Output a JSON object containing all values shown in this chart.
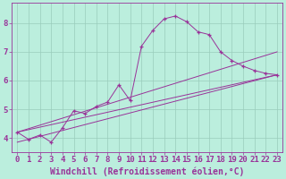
{
  "xlabel": "Windchill (Refroidissement éolien,°C)",
  "bg_color": "#bbeedd",
  "line_color": "#993399",
  "grid_color": "#99ccbb",
  "xlim": [
    -0.5,
    23.5
  ],
  "ylim": [
    3.5,
    8.7
  ],
  "xticks": [
    0,
    1,
    2,
    3,
    4,
    5,
    6,
    7,
    8,
    9,
    10,
    11,
    12,
    13,
    14,
    15,
    16,
    17,
    18,
    19,
    20,
    21,
    22,
    23
  ],
  "yticks": [
    4,
    5,
    6,
    7,
    8
  ],
  "curve_x": [
    0,
    1,
    2,
    3,
    4,
    5,
    6,
    7,
    8,
    9,
    10,
    11,
    12,
    13,
    14,
    15,
    16,
    17,
    18,
    19,
    20,
    21,
    22,
    23
  ],
  "curve_y": [
    4.2,
    3.95,
    4.1,
    3.85,
    4.35,
    4.95,
    4.85,
    5.1,
    5.25,
    5.85,
    5.3,
    7.2,
    7.75,
    8.15,
    8.25,
    8.05,
    7.7,
    7.6,
    7.0,
    6.7,
    6.5,
    6.35,
    6.25,
    6.2
  ],
  "line1_x": [
    0,
    23
  ],
  "line1_y": [
    4.2,
    6.2
  ],
  "line2_x": [
    0,
    23
  ],
  "line2_y": [
    4.2,
    7.0
  ],
  "line3_x": [
    0,
    23
  ],
  "line3_y": [
    3.85,
    6.2
  ],
  "font_size": 6.5,
  "xlabel_fontsize": 7,
  "marker": "+"
}
